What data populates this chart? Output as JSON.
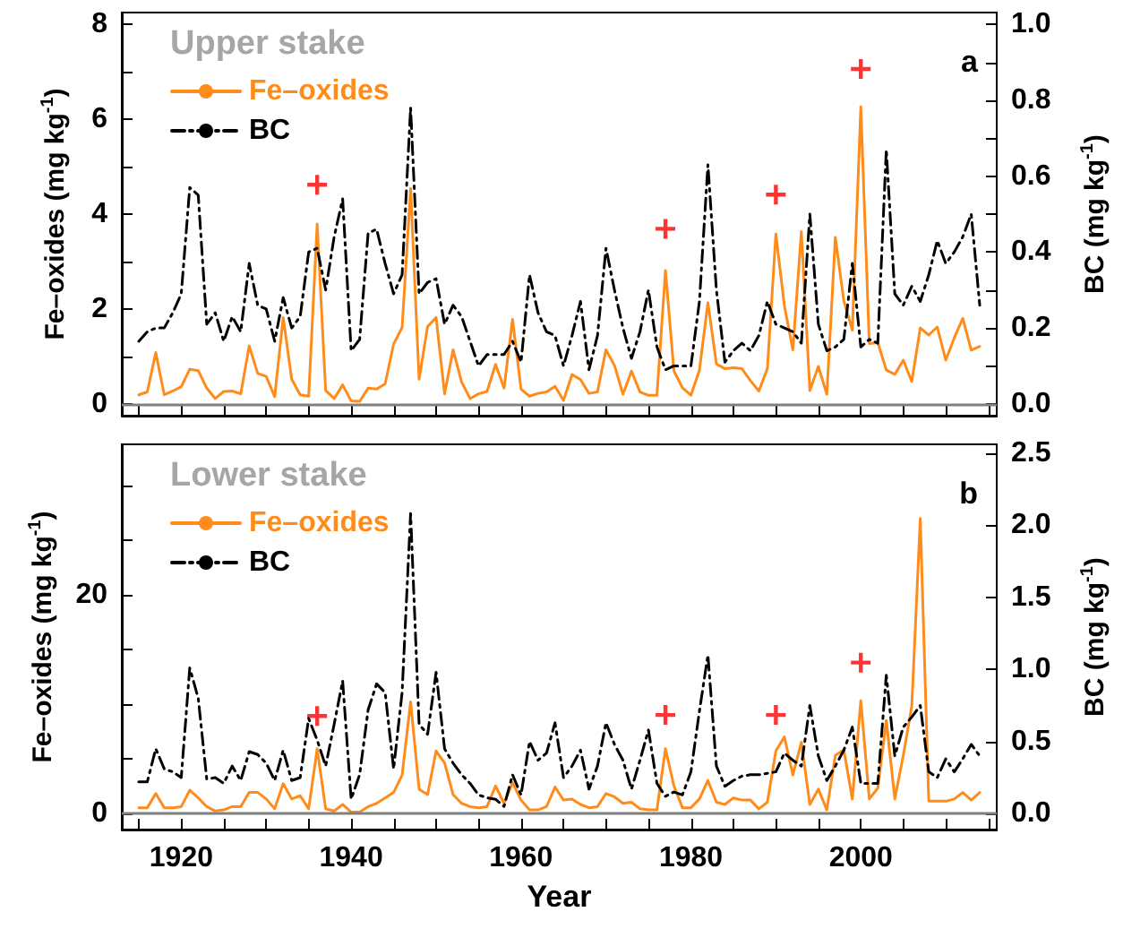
{
  "chart_data": [
    {
      "type": "line",
      "title": "Upper stake",
      "annotations": [
        "a"
      ],
      "ylabel": "Fe–oxides (mg kg$^{-1}$)",
      "y2label": "BC (mg kg$^{-1}$)",
      "legend": "top left",
      "tick_labels": "y",
      "x": [
        1915,
        1916,
        1917,
        1918,
        1919,
        1920,
        1921,
        1922,
        1923,
        1924,
        1925,
        1926,
        1927,
        1928,
        1929,
        1930,
        1931,
        1932,
        1933,
        1934,
        1935,
        1936,
        1937,
        1938,
        1939,
        1940,
        1941,
        1942,
        1943,
        1944,
        1945,
        1946,
        1947,
        1948,
        1949,
        1950,
        1951,
        1952,
        1953,
        1954,
        1955,
        1956,
        1957,
        1958,
        1959,
        1960,
        1961,
        1962,
        1963,
        1964,
        1965,
        1966,
        1967,
        1968,
        1969,
        1970,
        1971,
        1972,
        1973,
        1974,
        1975,
        1976,
        1977,
        1978,
        1979,
        1980,
        1981,
        1982,
        1983,
        1984,
        1985,
        1986,
        1987,
        1988,
        1989,
        1990,
        1991,
        1992,
        1993,
        1994,
        1995,
        1996,
        1997,
        1998,
        1999,
        2000,
        2001,
        2002,
        2003,
        2004,
        2005,
        2006,
        2007,
        2008,
        2009,
        2010,
        2011,
        2012,
        2013,
        2014
      ],
      "xlim": [
        1913,
        2016
      ],
      "xticks": [
        {
          "value": 1915,
          "label": null
        },
        1920,
        {
          "value": 1925,
          "label": null
        },
        {
          "value": 1930,
          "label": null
        },
        {
          "value": 1935,
          "label": null
        },
        1940,
        {
          "value": 1945,
          "label": null
        },
        {
          "value": 1950,
          "label": null
        },
        {
          "value": 1955,
          "label": null
        },
        1960,
        {
          "value": 1965,
          "label": null
        },
        {
          "value": 1970,
          "label": null
        },
        {
          "value": 1975,
          "label": null
        },
        1980,
        {
          "value": 1985,
          "label": null
        },
        {
          "value": 1990,
          "label": null
        },
        {
          "value": 1995,
          "label": null
        },
        2000,
        {
          "value": 2005,
          "label": null
        },
        {
          "value": 2010,
          "label": null
        },
        {
          "value": 2015,
          "label": null
        }
      ],
      "ylim": [
        -0.25,
        8.25
      ],
      "yticks": [
        0,
        {
          "value": 1,
          "label": null
        },
        2,
        {
          "value": 3,
          "label": null
        },
        4,
        {
          "value": 5,
          "label": null
        },
        6,
        {
          "value": 7,
          "label": null
        },
        8
      ],
      "y2lim": [
        -0.031,
        1.031
      ],
      "y2ticks": [
        {
          "value": 0,
          "label": "0.0"
        },
        {
          "value": 0.1,
          "label": null
        },
        {
          "value": 0.2,
          "label": "0.2"
        },
        {
          "value": 0.3,
          "label": null
        },
        {
          "value": 0.4,
          "label": "0.4"
        },
        {
          "value": 0.5,
          "label": null
        },
        {
          "value": 0.6,
          "label": "0.6"
        },
        {
          "value": 0.7,
          "label": null
        },
        {
          "value": 0.8,
          "label": "0.8"
        },
        {
          "value": 0.9,
          "label": null
        },
        {
          "value": 1,
          "label": "1.0"
        }
      ],
      "ref_lines": [
        {
          "axis": "y",
          "value": 0,
          "color": "#808080"
        }
      ],
      "series": [
        {
          "name": "Fe–oxides",
          "color": "#ff8c1a",
          "line_style": "solid",
          "values": [
            0.19,
            0.25,
            1.08,
            0.19,
            0.27,
            0.36,
            0.73,
            0.7,
            0.33,
            0.11,
            0.26,
            0.27,
            0.21,
            1.22,
            0.64,
            0.58,
            0.15,
            1.82,
            0.52,
            0.19,
            0.16,
            3.79,
            0.28,
            0.11,
            0.4,
            0.06,
            0.05,
            0.33,
            0.31,
            0.42,
            1.26,
            1.61,
            4.54,
            0.52,
            1.63,
            1.82,
            0.21,
            1.14,
            0.46,
            0.11,
            0.21,
            0.26,
            0.83,
            0.33,
            1.78,
            0.31,
            0.16,
            0.22,
            0.25,
            0.37,
            0.07,
            0.62,
            0.51,
            0.22,
            0.25,
            1.14,
            0.81,
            0.2,
            0.69,
            0.25,
            0.18,
            0.18,
            2.81,
            0.69,
            0.34,
            0.18,
            0.71,
            2.13,
            0.84,
            0.74,
            0.76,
            0.74,
            0.49,
            0.27,
            0.74,
            3.58,
            2.07,
            1.14,
            3.63,
            0.28,
            0.79,
            0.2,
            3.51,
            2.17,
            1.55,
            6.26,
            1.27,
            1.29,
            0.71,
            0.62,
            0.92,
            0.47,
            1.6,
            1.45,
            1.62,
            0.92,
            1.39,
            1.8,
            1.13,
            1.21
          ]
        },
        {
          "name": "BC",
          "color": "#000000",
          "line_style": "dashed",
          "axis": "y2",
          "values": [
            0.165,
            0.19,
            0.2,
            0.2,
            0.24,
            0.29,
            0.57,
            0.55,
            0.21,
            0.24,
            0.165,
            0.23,
            0.19,
            0.37,
            0.26,
            0.25,
            0.165,
            0.28,
            0.2,
            0.23,
            0.4,
            0.41,
            0.3,
            0.44,
            0.54,
            0.14,
            0.17,
            0.45,
            0.46,
            0.37,
            0.29,
            0.34,
            0.78,
            0.29,
            0.32,
            0.33,
            0.21,
            0.26,
            0.23,
            0.165,
            0.1,
            0.13,
            0.13,
            0.13,
            0.165,
            0.11,
            0.34,
            0.24,
            0.19,
            0.18,
            0.1,
            0.18,
            0.27,
            0.09,
            0.18,
            0.41,
            0.3,
            0.2,
            0.12,
            0.19,
            0.3,
            0.15,
            0.09,
            0.1,
            0.1,
            0.1,
            0.27,
            0.63,
            0.3,
            0.11,
            0.14,
            0.16,
            0.14,
            0.18,
            0.27,
            0.21,
            0.2,
            0.19,
            0.16,
            0.5,
            0.21,
            0.14,
            0.15,
            0.17,
            0.37,
            0.15,
            0.17,
            0.16,
            0.67,
            0.29,
            0.26,
            0.31,
            0.27,
            0.34,
            0.43,
            0.37,
            0.4,
            0.44,
            0.5,
            0.26
          ]
        },
        {
          "type": "scatter",
          "color": "#ff0000",
          "marker": "cross",
          "x": [
            1936,
            1977,
            1990,
            2000
          ],
          "values": [
            4.62,
            3.69,
            4.41,
            7.06
          ]
        }
      ]
    },
    {
      "type": "line",
      "title": "Lower stake",
      "annotations": [
        "b"
      ],
      "xlabel": "Year",
      "ylabel": "Fe–oxides (mg kg$^{-1}$)",
      "y2label": "BC (mg kg$^{-1}$)",
      "legend": "top left",
      "x": [
        1915,
        1916,
        1917,
        1918,
        1919,
        1920,
        1921,
        1922,
        1923,
        1924,
        1925,
        1926,
        1927,
        1928,
        1929,
        1930,
        1931,
        1932,
        1933,
        1934,
        1935,
        1936,
        1937,
        1938,
        1939,
        1940,
        1941,
        1942,
        1943,
        1944,
        1945,
        1946,
        1947,
        1948,
        1949,
        1950,
        1951,
        1952,
        1953,
        1954,
        1955,
        1956,
        1957,
        1958,
        1959,
        1960,
        1961,
        1962,
        1963,
        1964,
        1965,
        1966,
        1967,
        1968,
        1969,
        1970,
        1971,
        1972,
        1973,
        1974,
        1975,
        1976,
        1977,
        1978,
        1979,
        1980,
        1981,
        1982,
        1983,
        1984,
        1985,
        1986,
        1987,
        1988,
        1989,
        1990,
        1991,
        1992,
        1993,
        1994,
        1995,
        1996,
        1997,
        1998,
        1999,
        2000,
        2001,
        2002,
        2003,
        2004,
        2005,
        2006,
        2007,
        2008,
        2009,
        2010,
        2011,
        2012,
        2013,
        2014
      ],
      "xlim": [
        1913,
        2016
      ],
      "xticks": [
        {
          "value": 1915,
          "label": null
        },
        1920,
        {
          "value": 1925,
          "label": null
        },
        {
          "value": 1930,
          "label": null
        },
        {
          "value": 1935,
          "label": null
        },
        1940,
        {
          "value": 1945,
          "label": null
        },
        {
          "value": 1950,
          "label": null
        },
        {
          "value": 1955,
          "label": null
        },
        1960,
        {
          "value": 1965,
          "label": null
        },
        {
          "value": 1970,
          "label": null
        },
        {
          "value": 1975,
          "label": null
        },
        1980,
        {
          "value": 1985,
          "label": null
        },
        {
          "value": 1990,
          "label": null
        },
        {
          "value": 1995,
          "label": null
        },
        2000,
        {
          "value": 2005,
          "label": null
        },
        {
          "value": 2010,
          "label": null
        },
        {
          "value": 2015,
          "label": null
        }
      ],
      "ylim": [
        -1.5,
        33.8
      ],
      "yticks": [
        0,
        {
          "value": 5,
          "label": null
        },
        {
          "value": 10,
          "label": null
        },
        {
          "value": 15,
          "label": null
        },
        20,
        {
          "value": 25,
          "label": null
        },
        {
          "value": 30,
          "label": null
        }
      ],
      "y2lim": [
        -0.11,
        2.56
      ],
      "y2ticks": [
        {
          "value": 0,
          "label": "0.0"
        },
        {
          "value": 0.5,
          "label": "0.5"
        },
        {
          "value": 1,
          "label": "1.0"
        },
        {
          "value": 1.5,
          "label": "1.5"
        },
        {
          "value": 2,
          "label": "2.0"
        },
        {
          "value": 2.5,
          "label": "2.5"
        }
      ],
      "ref_lines": [
        {
          "axis": "y",
          "value": 0,
          "color": "#808080"
        }
      ],
      "series": [
        {
          "name": "Fe–oxides",
          "color": "#ff8c1a",
          "line_style": "solid",
          "values": [
            0.5,
            0.5,
            1.8,
            0.5,
            0.5,
            0.6,
            2.1,
            1.4,
            0.6,
            0.2,
            0.3,
            0.6,
            0.6,
            1.9,
            1.9,
            1.3,
            0.4,
            2.7,
            1.3,
            1.6,
            0.4,
            5.9,
            0.4,
            0.2,
            0.8,
            0.1,
            0.1,
            0.6,
            0.9,
            1.4,
            1.9,
            3.5,
            10.2,
            2.2,
            1.7,
            5.7,
            4.6,
            1.7,
            0.9,
            0.6,
            0.5,
            0.6,
            2.5,
            0.9,
            2.8,
            1.2,
            0.3,
            0.3,
            0.6,
            2.4,
            1.2,
            1.3,
            0.8,
            0.5,
            0.6,
            1.8,
            1.5,
            0.9,
            1.0,
            0.4,
            0.3,
            0.3,
            5.9,
            2.5,
            0.5,
            0.5,
            1.3,
            3.0,
            1.0,
            0.8,
            1.4,
            1.2,
            1.2,
            0.4,
            1.0,
            5.7,
            7.0,
            3.5,
            6.5,
            0.8,
            2.2,
            0.3,
            5.3,
            5.8,
            1.3,
            10.3,
            1.3,
            2.3,
            8.5,
            1.3,
            5.3,
            9.8,
            27,
            1.1,
            1.1,
            1.1,
            1.3,
            1.9,
            1.2,
            1.9
          ]
        },
        {
          "name": "BC",
          "color": "#000000",
          "line_style": "dashed",
          "axis": "y2",
          "values": [
            0.22,
            0.22,
            0.45,
            0.31,
            0.29,
            0.25,
            1.01,
            0.8,
            0.24,
            0.25,
            0.21,
            0.33,
            0.23,
            0.43,
            0.41,
            0.35,
            0.23,
            0.44,
            0.23,
            0.25,
            0.66,
            0.51,
            0.33,
            0.62,
            0.92,
            0.1,
            0.27,
            0.72,
            0.9,
            0.84,
            0.31,
            0.84,
            2.08,
            0.62,
            0.55,
            0.98,
            0.45,
            0.35,
            0.27,
            0.21,
            0.13,
            0.11,
            0.1,
            0.05,
            0.27,
            0.13,
            0.5,
            0.37,
            0.42,
            0.63,
            0.25,
            0.33,
            0.44,
            0.17,
            0.33,
            0.63,
            0.48,
            0.37,
            0.17,
            0.37,
            0.58,
            0.21,
            0.12,
            0.15,
            0.13,
            0.29,
            0.71,
            1.1,
            0.33,
            0.19,
            0.23,
            0.26,
            0.27,
            0.27,
            0.28,
            0.29,
            0.42,
            0.37,
            0.33,
            0.75,
            0.4,
            0.23,
            0.33,
            0.44,
            0.6,
            0.21,
            0.21,
            0.21,
            0.96,
            0.4,
            0.6,
            0.67,
            0.75,
            0.29,
            0.25,
            0.38,
            0.29,
            0.38,
            0.48,
            0.4
          ]
        },
        {
          "type": "scatter",
          "color": "#ff0000",
          "marker": "cross",
          "x": [
            1936,
            1977,
            1990,
            2000
          ],
          "values": [
            8.9,
            9,
            9,
            13.8
          ]
        }
      ]
    }
  ]
}
